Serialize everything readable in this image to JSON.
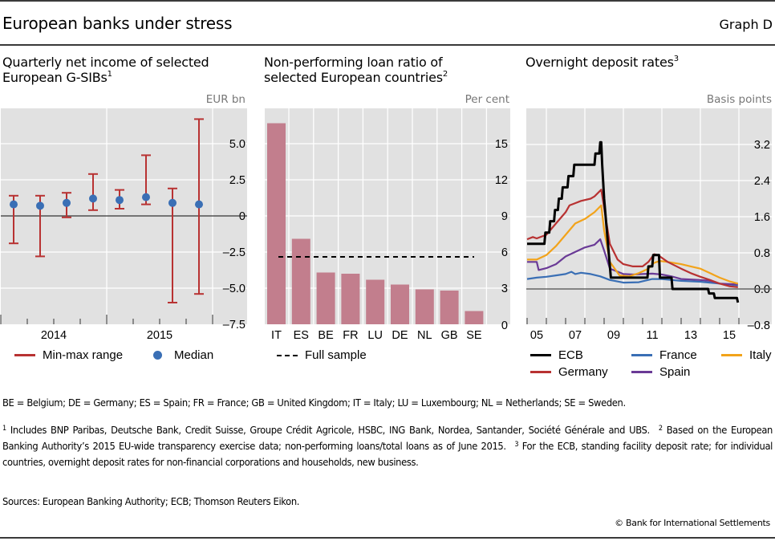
{
  "header": {
    "title": "European banks under stress",
    "graph_label": "Graph D"
  },
  "panels": [
    {
      "title_line1": "Quarterly net income of selected",
      "title_line2": "European G-SIBs",
      "title_sup": "1",
      "unit": "EUR bn"
    },
    {
      "title_line1": "Non-performing loan ratio of",
      "title_line2": "selected European countries",
      "title_sup": "2",
      "unit": "Per cent"
    },
    {
      "title_line1": "Overnight deposit rates",
      "title_line2": "",
      "title_sup": "3",
      "unit": "Basis points"
    }
  ],
  "chart_data": [
    {
      "type": "scatter",
      "title": "Quarterly net income of selected European G-SIBs",
      "ylabel": "EUR bn",
      "ylim": [
        -7.5,
        7.5
      ],
      "yticks": [
        5.0,
        2.5,
        0,
        -2.5,
        -5.0,
        -7.5
      ],
      "ytick_labels": [
        "5.0",
        "2.5",
        "0",
        "–2.5",
        "–5.0",
        "–7.5"
      ],
      "x_groups": [
        "2014",
        "2015"
      ],
      "categories": [
        "2014Q1",
        "2014Q2",
        "2014Q3",
        "2014Q4",
        "2015Q1",
        "2015Q2",
        "2015Q3",
        "2015Q4"
      ],
      "series": [
        {
          "name": "Min-max range",
          "color": "#b83232",
          "min": [
            -1.9,
            -2.8,
            -0.1,
            0.4,
            0.5,
            0.8,
            -6.0,
            -5.4
          ],
          "max": [
            1.4,
            1.4,
            1.6,
            2.9,
            1.8,
            4.2,
            1.9,
            6.7
          ]
        },
        {
          "name": "Median",
          "color": "#3a6fb5",
          "values": [
            0.8,
            0.7,
            0.9,
            1.2,
            1.1,
            1.3,
            0.9,
            0.8
          ]
        }
      ],
      "grid": true,
      "legend": "bottom"
    },
    {
      "type": "bar",
      "title": "Non-performing loan ratio of selected European countries",
      "ylabel": "Per cent",
      "ylim": [
        0,
        18
      ],
      "yticks": [
        15,
        12,
        9,
        6,
        3,
        0
      ],
      "ytick_labels": [
        "15",
        "12",
        "9",
        "6",
        "3",
        "0"
      ],
      "categories": [
        "IT",
        "ES",
        "BE",
        "FR",
        "LU",
        "DE",
        "NL",
        "GB",
        "SE"
      ],
      "series": [
        {
          "name": "NPL ratio",
          "color": "#c27e8d",
          "values": [
            16.7,
            7.1,
            4.3,
            4.2,
            3.7,
            3.3,
            2.9,
            2.8,
            1.1
          ]
        },
        {
          "name": "Full sample",
          "color": "#000000",
          "style": "dashed",
          "value": 5.6
        }
      ],
      "grid": true,
      "legend": "bottom"
    },
    {
      "type": "line",
      "title": "Overnight deposit rates",
      "ylabel": "Basis points",
      "ylim": [
        -0.8,
        4.0
      ],
      "yticks": [
        3.2,
        2.4,
        1.6,
        0.8,
        0.0,
        -0.8
      ],
      "ytick_labels": [
        "3.2",
        "2.4",
        "1.6",
        "0.8",
        "0.0",
        "–0.8"
      ],
      "xlim": [
        2005,
        2016.6
      ],
      "xticks": [
        2005,
        2007,
        2009,
        2011,
        2013,
        2015
      ],
      "xtick_labels": [
        "05",
        "07",
        "09",
        "11",
        "13",
        "15"
      ],
      "series": [
        {
          "name": "ECB",
          "color": "#000000",
          "x": [
            2005.0,
            2005.9,
            2005.95,
            2006.15,
            2006.2,
            2006.4,
            2006.45,
            2006.6,
            2006.65,
            2006.8,
            2006.85,
            2007.1,
            2007.15,
            2007.4,
            2007.45,
            2008.5,
            2008.55,
            2008.75,
            2008.8,
            2008.85,
            2008.9,
            2009.0,
            2009.2,
            2009.35,
            2011.25,
            2011.3,
            2011.5,
            2011.55,
            2011.85,
            2011.9,
            2012.5,
            2012.55,
            2014.4,
            2014.45,
            2014.7,
            2014.75,
            2015.9,
            2015.95
          ],
          "y": [
            1.0,
            1.0,
            1.25,
            1.25,
            1.5,
            1.5,
            1.75,
            1.75,
            2.0,
            2.0,
            2.25,
            2.25,
            2.5,
            2.5,
            2.75,
            2.75,
            3.0,
            3.0,
            3.25,
            3.25,
            2.75,
            2.0,
            1.0,
            0.25,
            0.25,
            0.5,
            0.5,
            0.75,
            0.75,
            0.25,
            0.25,
            0.0,
            0.0,
            -0.1,
            -0.1,
            -0.2,
            -0.2,
            -0.3
          ]
        },
        {
          "name": "France",
          "color": "#3a6fb5",
          "x": [
            2005.0,
            2005.5,
            2006.0,
            2006.5,
            2007.0,
            2007.3,
            2007.5,
            2007.8,
            2008.3,
            2008.8,
            2009.3,
            2010.0,
            2010.8,
            2011.5,
            2012.0,
            2012.5,
            2013.0,
            2014.0,
            2015.0,
            2015.95
          ],
          "y": [
            0.22,
            0.25,
            0.27,
            0.3,
            0.33,
            0.38,
            0.33,
            0.36,
            0.33,
            0.28,
            0.2,
            0.14,
            0.15,
            0.22,
            0.22,
            0.2,
            0.18,
            0.16,
            0.12,
            0.08
          ]
        },
        {
          "name": "Italy",
          "color": "#f2a31a",
          "x": [
            2005.0,
            2005.5,
            2006.0,
            2006.5,
            2007.0,
            2007.5,
            2008.0,
            2008.5,
            2008.85,
            2009.0,
            2009.3,
            2009.8,
            2010.3,
            2010.8,
            2011.3,
            2011.6,
            2011.9,
            2012.3,
            2013.0,
            2013.5,
            2014.0,
            2014.5,
            2015.0,
            2015.5,
            2015.95
          ],
          "y": [
            0.65,
            0.65,
            0.75,
            0.95,
            1.2,
            1.45,
            1.55,
            1.7,
            1.85,
            1.3,
            0.6,
            0.3,
            0.28,
            0.35,
            0.45,
            0.58,
            0.62,
            0.6,
            0.55,
            0.5,
            0.45,
            0.35,
            0.25,
            0.17,
            0.12
          ]
        },
        {
          "name": "Spain",
          "color": "#6a3a96",
          "x": [
            2005.0,
            2005.5,
            2005.6,
            2006.0,
            2006.5,
            2007.0,
            2007.5,
            2008.0,
            2008.5,
            2008.8,
            2009.0,
            2009.3,
            2009.6,
            2010.0,
            2010.5,
            2011.0,
            2011.5,
            2012.0,
            2012.5,
            2013.0,
            2014.0,
            2014.5,
            2015.0,
            2015.95
          ],
          "y": [
            0.6,
            0.6,
            0.42,
            0.46,
            0.55,
            0.72,
            0.82,
            0.92,
            0.98,
            1.1,
            0.85,
            0.45,
            0.4,
            0.33,
            0.32,
            0.33,
            0.34,
            0.32,
            0.28,
            0.22,
            0.2,
            0.18,
            0.12,
            0.1
          ]
        },
        {
          "name": "Germany",
          "color": "#b83232",
          "x": [
            2005.0,
            2005.3,
            2005.5,
            2006.0,
            2006.5,
            2007.0,
            2007.2,
            2007.5,
            2007.8,
            2008.3,
            2008.5,
            2008.85,
            2009.0,
            2009.3,
            2009.7,
            2010.0,
            2010.5,
            2011.0,
            2011.3,
            2011.6,
            2011.8,
            2012.3,
            2013.0,
            2013.5,
            2014.0,
            2014.5,
            2015.0,
            2015.5,
            2015.95
          ],
          "y": [
            1.1,
            1.15,
            1.12,
            1.2,
            1.45,
            1.7,
            1.85,
            1.9,
            1.95,
            2.0,
            2.05,
            2.2,
            1.8,
            1.0,
            0.65,
            0.55,
            0.5,
            0.5,
            0.6,
            0.77,
            0.75,
            0.6,
            0.45,
            0.35,
            0.27,
            0.2,
            0.12,
            0.06,
            0.04
          ]
        }
      ],
      "grid": true,
      "legend": "bottom"
    }
  ],
  "legends": {
    "panel1": [
      {
        "label": "Min-max range",
        "color": "#b83232",
        "icon": "line"
      },
      {
        "label": "Median",
        "color": "#3a6fb5",
        "icon": "dot"
      }
    ],
    "panel2": [
      {
        "label": "Full sample",
        "color": "#000000",
        "icon": "dashed-line"
      }
    ],
    "panel3": [
      {
        "label": "ECB",
        "color": "#000000"
      },
      {
        "label": "France",
        "color": "#3a6fb5"
      },
      {
        "label": "Italy",
        "color": "#f2a31a"
      },
      {
        "label": "Germany",
        "color": "#b83232"
      },
      {
        "label": "Spain",
        "color": "#6a3a96"
      }
    ]
  },
  "footer": {
    "abbreviations": "BE = Belgium; DE = Germany; ES = Spain; FR = France; GB = United Kingdom; IT = Italy; LU = Luxembourg; NL = Netherlands; SE = Sweden.",
    "note1_sup": "1",
    "note1": "Includes BNP Paribas, Deutsche Bank, Credit Suisse, Groupe Crédit Agricole, HSBC, ING Bank, Nordea, Santander, Société Générale and UBS.",
    "note2_sup": "2",
    "note2": "Based on the European Banking Authority’s 2015 EU-wide transparency exercise data; non-performing loans/total loans as of June 2015.",
    "note3_sup": "3",
    "note3": "For the ECB, standing facility deposit rate; for individual countries, overnight deposit rates for non-financial corporations and households, new business.",
    "sources": "Sources: European Banking Authority; ECB; Thomson Reuters Eikon.",
    "copyright": "© Bank for International Settlements"
  }
}
